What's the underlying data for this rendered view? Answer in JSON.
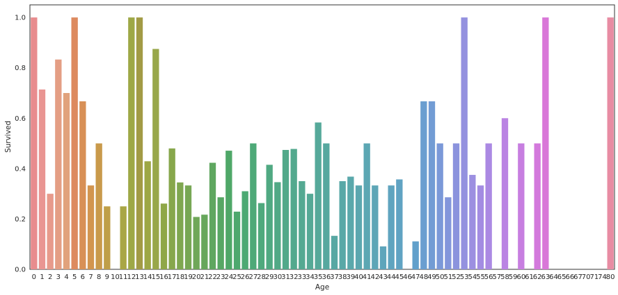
{
  "chart_data": {
    "type": "bar",
    "xlabel": "Age",
    "ylabel": "Survived",
    "ylim": [
      0,
      1.05
    ],
    "grid": false,
    "yticks": [
      "0.0",
      "0.2",
      "0.4",
      "0.6",
      "0.8",
      "1.0"
    ],
    "categories": [
      "0",
      "1",
      "2",
      "3",
      "4",
      "5",
      "6",
      "7",
      "8",
      "9",
      "10",
      "11",
      "12",
      "13",
      "14",
      "15",
      "16",
      "17",
      "18",
      "19",
      "20",
      "21",
      "22",
      "23",
      "24",
      "25",
      "26",
      "27",
      "28",
      "29",
      "30",
      "31",
      "32",
      "33",
      "34",
      "35",
      "36",
      "37",
      "38",
      "39",
      "40",
      "41",
      "42",
      "43",
      "44",
      "45",
      "46",
      "47",
      "48",
      "49",
      "50",
      "51",
      "52",
      "53",
      "54",
      "55",
      "56",
      "57",
      "58",
      "59",
      "60",
      "61",
      "62",
      "63",
      "64",
      "65",
      "66",
      "67",
      "70",
      "71",
      "74",
      "80"
    ],
    "values": [
      1.0,
      0.714,
      0.3,
      0.833,
      0.7,
      1.0,
      0.667,
      0.333,
      0.5,
      0.25,
      0.0,
      0.25,
      1.0,
      1.0,
      0.429,
      0.875,
      0.261,
      0.48,
      0.345,
      0.333,
      0.208,
      0.217,
      0.423,
      0.286,
      0.471,
      0.229,
      0.31,
      0.5,
      0.263,
      0.415,
      0.346,
      0.474,
      0.478,
      0.35,
      0.3,
      0.583,
      0.5,
      0.133,
      0.35,
      0.368,
      0.333,
      0.5,
      0.333,
      0.091,
      0.333,
      0.357,
      0.0,
      0.111,
      0.667,
      0.667,
      0.5,
      0.286,
      0.5,
      1.0,
      0.375,
      0.333,
      0.5,
      0.0,
      0.6,
      0.0,
      0.5,
      0.0,
      0.5,
      1.0,
      0.0,
      0.0,
      0.0,
      0.0,
      0.0,
      0.0,
      0.0,
      1.0
    ],
    "colors": [
      "#e88c8e",
      "#e99592",
      "#e79a8b",
      "#e49e84",
      "#e1a27c",
      "#dd8a5f",
      "#d89056",
      "#d2954f",
      "#c99a4b",
      "#bf9f48",
      "#b4a346",
      "#a9a645",
      "#9ea846",
      "#a29b45",
      "#9da745",
      "#98a74a",
      "#8fa748",
      "#87a74c",
      "#7fa750",
      "#77a754",
      "#6fa758",
      "#67a75c",
      "#5fa760",
      "#57a764",
      "#4fa768",
      "#4ea86e",
      "#4ca973",
      "#4ea978",
      "#4fa97d",
      "#50a982",
      "#51a986",
      "#52a98a",
      "#53a98e",
      "#54a992",
      "#55a996",
      "#56a99a",
      "#57a89f",
      "#58a8a3",
      "#59a8a7",
      "#5aa8ab",
      "#5ba7af",
      "#5ca7b3",
      "#5da6b7",
      "#5ea5bb",
      "#5fa4bf",
      "#60a3c3",
      "#61a2c7",
      "#62a0cb",
      "#6a9ed0",
      "#729cd4",
      "#7b99d8",
      "#8396db",
      "#8b93dd",
      "#9491df",
      "#9c8fe1",
      "#a38ce2",
      "#ab89e3",
      "#b386e3",
      "#ba83e3",
      "#c180e2",
      "#c77ee0",
      "#cd7bde",
      "#d379dc",
      "#d977d8",
      "#de76d2",
      "#e275cc",
      "#e574c6",
      "#e774bf",
      "#e875b8",
      "#e977b1",
      "#e979aa",
      "#e88ca3"
    ]
  }
}
